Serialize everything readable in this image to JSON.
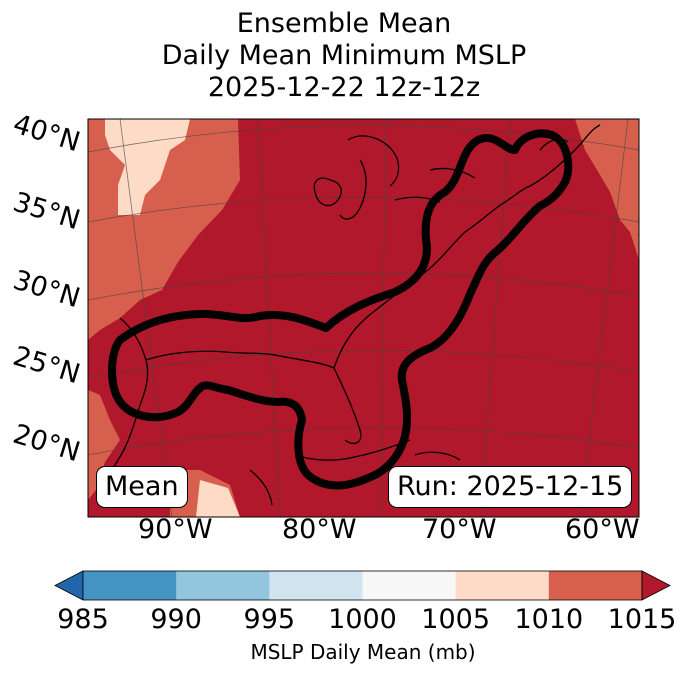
{
  "title": {
    "line1": "Ensemble Mean",
    "line2": "Daily Mean Minimum MSLP",
    "line3": "2025-12-22 12z-12z"
  },
  "map": {
    "lat_labels": [
      "40°N",
      "35°N",
      "30°N",
      "25°N",
      "20°N"
    ],
    "lon_labels": [
      "90°W",
      "80°W",
      "70°W",
      "60°W"
    ],
    "left_box": "Mean",
    "right_box": "Run: 2025-12-15",
    "colors": {
      "1010-1015": "#b2182b",
      "1005-1010": "#d6604d",
      "1000-1005": "#fddbc7",
      "contour": "#000000"
    }
  },
  "colorbar": {
    "ticks": [
      "985",
      "990",
      "995",
      "1000",
      "1005",
      "1010",
      "1015"
    ],
    "colors": [
      "#2166ac",
      "#4393c3",
      "#92c5de",
      "#d1e5f0",
      "#f7f7f7",
      "#fddbc7",
      "#d6604d",
      "#b2182b"
    ],
    "label": "MSLP Daily Mean (mb)"
  }
}
